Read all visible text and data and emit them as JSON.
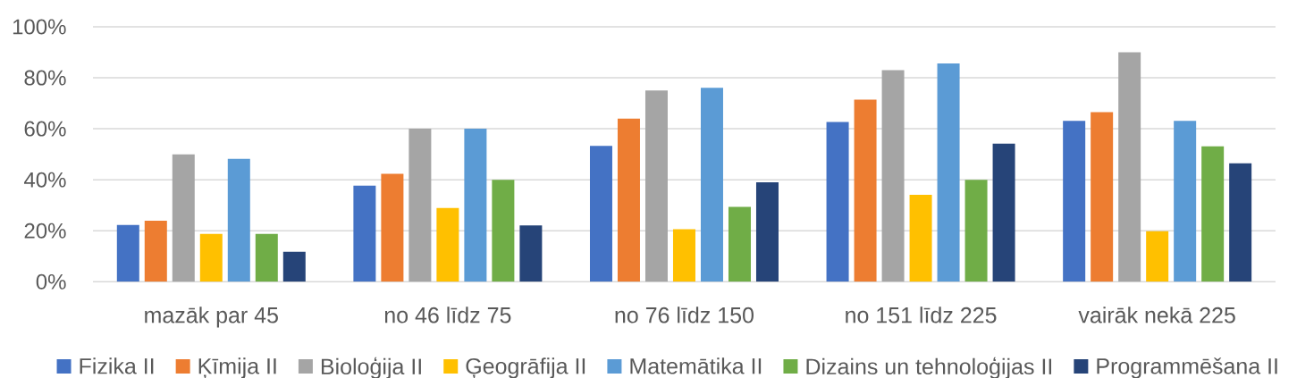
{
  "chart_data": {
    "type": "bar",
    "categories": [
      "mazāk par 45",
      "no 46 līdz 75",
      "no 76 līdz 150",
      "no 151 līdz 225",
      "vairāk nekā 225"
    ],
    "series": [
      {
        "name": "Fizika II",
        "color": "#4472C4",
        "values": [
          22.3,
          37.7,
          53.3,
          62.7,
          63.1
        ]
      },
      {
        "name": "Ķīmija II",
        "color": "#ED7D31",
        "values": [
          23.9,
          42.3,
          64.0,
          71.4,
          66.5
        ]
      },
      {
        "name": "Bioloģija II",
        "color": "#A5A5A5",
        "values": [
          50,
          60,
          75,
          83,
          90
        ]
      },
      {
        "name": "Ģeogrāfija II",
        "color": "#FFC000",
        "values": [
          18.8,
          28.9,
          20.6,
          34.1,
          19.8
        ]
      },
      {
        "name": "Matemātika II",
        "color": "#5B9BD5",
        "values": [
          48.2,
          60,
          76.1,
          85.6,
          63.1
        ]
      },
      {
        "name": "Dizains un tehnoloģijas II",
        "color": "#70AD47",
        "values": [
          18.8,
          40,
          29.4,
          40,
          53.1
        ]
      },
      {
        "name": "Programmēšana II",
        "color": "#264478",
        "values": [
          11.8,
          22.1,
          39.0,
          54.2,
          46.5
        ]
      }
    ],
    "ylim": [
      0,
      100
    ],
    "yticks": [
      {
        "value": 0,
        "label": "0%"
      },
      {
        "value": 20,
        "label": "20%"
      },
      {
        "value": 40,
        "label": "40%"
      },
      {
        "value": 60,
        "label": "60%"
      },
      {
        "value": 80,
        "label": "80%"
      },
      {
        "value": 100,
        "label": "100%"
      }
    ],
    "grid": "y",
    "legend": "bottom"
  }
}
